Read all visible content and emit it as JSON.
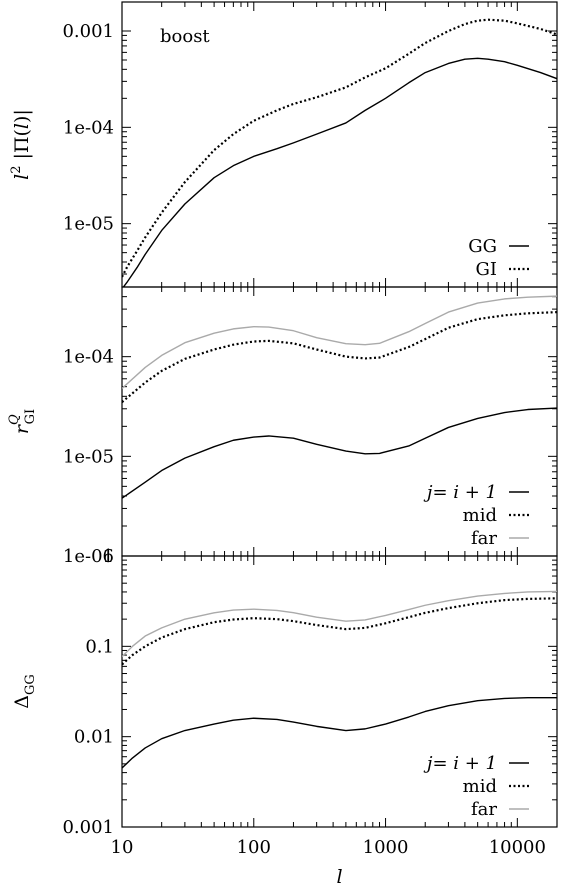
{
  "chart_data": [
    {
      "type": "line",
      "title": "",
      "annotation": "boost",
      "ylabel": "l² |Π(l)|",
      "xlabel": "",
      "xscale": "log",
      "yscale": "log",
      "xlim": [
        10,
        20000
      ],
      "ylim": [
        2.2e-06,
        0.002
      ],
      "yticks": [
        {
          "v": 0.001,
          "label": "0.001"
        },
        {
          "v": 0.0001,
          "label": "1e-04"
        },
        {
          "v": 1e-05,
          "label": "1e-05"
        }
      ],
      "legend_position": "bottom-right",
      "series": [
        {
          "name": "GG",
          "style": "solid",
          "color": "#000000",
          "x": [
            10,
            11,
            13,
            15,
            20,
            30,
            50,
            70,
            100,
            150,
            200,
            300,
            500,
            700,
            1000,
            1500,
            2000,
            3000,
            4000,
            5000,
            6000,
            8000,
            10000,
            15000,
            20000
          ],
          "y": [
            2.1e-06,
            2.5e-06,
            3.5e-06,
            4.8e-06,
            8.5e-06,
            1.6e-05,
            3e-05,
            4e-05,
            5e-05,
            6e-05,
            6.9e-05,
            8.5e-05,
            0.000111,
            0.00015,
            0.0002,
            0.00029,
            0.00037,
            0.00046,
            0.00051,
            0.00052,
            0.00051,
            0.00048,
            0.00044,
            0.00037,
            0.00032
          ]
        },
        {
          "name": "GI",
          "style": "dotted",
          "color": "#000000",
          "x": [
            10,
            11,
            13,
            15,
            20,
            30,
            50,
            70,
            100,
            150,
            200,
            300,
            500,
            700,
            1000,
            1500,
            2000,
            3000,
            4000,
            5000,
            6000,
            8000,
            10000,
            15000,
            20000
          ],
          "y": [
            2.8e-06,
            3.6e-06,
            5.2e-06,
            7.2e-06,
            1.3e-05,
            2.7e-05,
            5.8e-05,
            8.5e-05,
            0.000117,
            0.00015,
            0.000175,
            0.000205,
            0.00026,
            0.00033,
            0.00041,
            0.00058,
            0.00075,
            0.001,
            0.00118,
            0.00128,
            0.00131,
            0.00128,
            0.0012,
            0.00105,
            0.00092
          ]
        }
      ]
    },
    {
      "type": "line",
      "title": "",
      "ylabel": "r^Q_GI",
      "ylabel_main": "r",
      "ylabel_sup": "Q",
      "ylabel_sub": "GI",
      "xlabel": "",
      "xscale": "log",
      "yscale": "log",
      "xlim": [
        10,
        20000
      ],
      "ylim": [
        1e-06,
        0.0005
      ],
      "yticks": [
        {
          "v": 0.0001,
          "label": "1e-04"
        },
        {
          "v": 1e-05,
          "label": "1e-05"
        },
        {
          "v": 1e-06,
          "label": "1e-06"
        }
      ],
      "legend_position": "bottom-right",
      "series": [
        {
          "name": "j= i + 1",
          "style": "solid",
          "color": "#000000",
          "x": [
            10,
            15,
            20,
            30,
            50,
            70,
            100,
            130,
            200,
            300,
            500,
            700,
            900,
            1500,
            2000,
            3000,
            5000,
            8000,
            12000,
            20000
          ],
          "y": [
            3.8e-06,
            5.5e-06,
            7.2e-06,
            9.6e-06,
            1.25e-05,
            1.45e-05,
            1.56e-05,
            1.6e-05,
            1.52e-05,
            1.32e-05,
            1.13e-05,
            1.06e-05,
            1.07e-05,
            1.27e-05,
            1.52e-05,
            1.95e-05,
            2.4e-05,
            2.75e-05,
            2.95e-05,
            3.05e-05
          ]
        },
        {
          "name": "mid",
          "style": "dotted",
          "color": "#000000",
          "x": [
            10,
            15,
            20,
            30,
            50,
            70,
            100,
            130,
            200,
            300,
            500,
            700,
            900,
            1500,
            2000,
            3000,
            5000,
            8000,
            12000,
            20000
          ],
          "y": [
            3.5e-05,
            5.5e-05,
            7.2e-05,
            9.5e-05,
            0.000118,
            0.000132,
            0.000142,
            0.000144,
            0.000136,
            0.000118,
            0.0001,
            9.6e-05,
            9.8e-05,
            0.000125,
            0.00015,
            0.000195,
            0.000238,
            0.00026,
            0.000272,
            0.00028
          ]
        },
        {
          "name": "far",
          "style": "solid",
          "color": "#aaaaaa",
          "x": [
            10,
            15,
            20,
            30,
            50,
            70,
            100,
            130,
            200,
            300,
            500,
            700,
            900,
            1500,
            2000,
            3000,
            5000,
            8000,
            12000,
            20000
          ],
          "y": [
            4.8e-05,
            7.8e-05,
            0.000103,
            0.000138,
            0.000172,
            0.00019,
            0.0002,
            0.000198,
            0.000182,
            0.000155,
            0.000135,
            0.000132,
            0.000136,
            0.000178,
            0.000215,
            0.00028,
            0.000345,
            0.00038,
            0.000395,
            0.000405
          ]
        }
      ]
    },
    {
      "type": "line",
      "title": "",
      "ylabel": "Δ_GG",
      "ylabel_main": "Δ",
      "ylabel_sub": "GG",
      "xlabel": "l",
      "xscale": "log",
      "yscale": "log",
      "xlim": [
        10,
        20000
      ],
      "ylim": [
        0.001,
        1
      ],
      "yticks": [
        {
          "v": 1,
          "label": "1"
        },
        {
          "v": 0.1,
          "label": "0.1"
        },
        {
          "v": 0.01,
          "label": "0.01"
        },
        {
          "v": 0.001,
          "label": "0.001"
        }
      ],
      "xticks": [
        {
          "v": 10,
          "label": "10"
        },
        {
          "v": 100,
          "label": "100"
        },
        {
          "v": 1000,
          "label": "1000"
        },
        {
          "v": 10000,
          "label": "10000"
        }
      ],
      "legend_position": "bottom-right",
      "series": [
        {
          "name": "j= i + 1",
          "style": "solid",
          "color": "#000000",
          "x": [
            10,
            12,
            15,
            20,
            30,
            50,
            70,
            100,
            150,
            200,
            300,
            500,
            700,
            1000,
            1500,
            2000,
            3000,
            5000,
            8000,
            12000,
            20000
          ],
          "y": [
            0.0045,
            0.0058,
            0.0075,
            0.0095,
            0.0117,
            0.0138,
            0.0152,
            0.016,
            0.0155,
            0.0145,
            0.013,
            0.0117,
            0.0122,
            0.0138,
            0.0165,
            0.019,
            0.022,
            0.025,
            0.0265,
            0.027,
            0.027
          ]
        },
        {
          "name": "mid",
          "style": "dotted",
          "color": "#000000",
          "x": [
            10,
            12,
            15,
            20,
            30,
            50,
            70,
            100,
            150,
            200,
            300,
            500,
            700,
            1000,
            1500,
            2000,
            3000,
            5000,
            8000,
            12000,
            20000
          ],
          "y": [
            0.063,
            0.08,
            0.1,
            0.125,
            0.155,
            0.185,
            0.198,
            0.205,
            0.2,
            0.19,
            0.172,
            0.155,
            0.16,
            0.18,
            0.21,
            0.235,
            0.265,
            0.3,
            0.325,
            0.335,
            0.34
          ]
        },
        {
          "name": "far",
          "style": "solid",
          "color": "#aaaaaa",
          "x": [
            10,
            12,
            15,
            20,
            30,
            50,
            70,
            100,
            150,
            200,
            300,
            500,
            700,
            1000,
            1500,
            2000,
            3000,
            5000,
            8000,
            12000,
            20000
          ],
          "y": [
            0.077,
            0.1,
            0.13,
            0.16,
            0.2,
            0.235,
            0.252,
            0.258,
            0.25,
            0.236,
            0.21,
            0.19,
            0.196,
            0.22,
            0.255,
            0.285,
            0.32,
            0.36,
            0.385,
            0.4,
            0.405
          ]
        }
      ]
    }
  ]
}
